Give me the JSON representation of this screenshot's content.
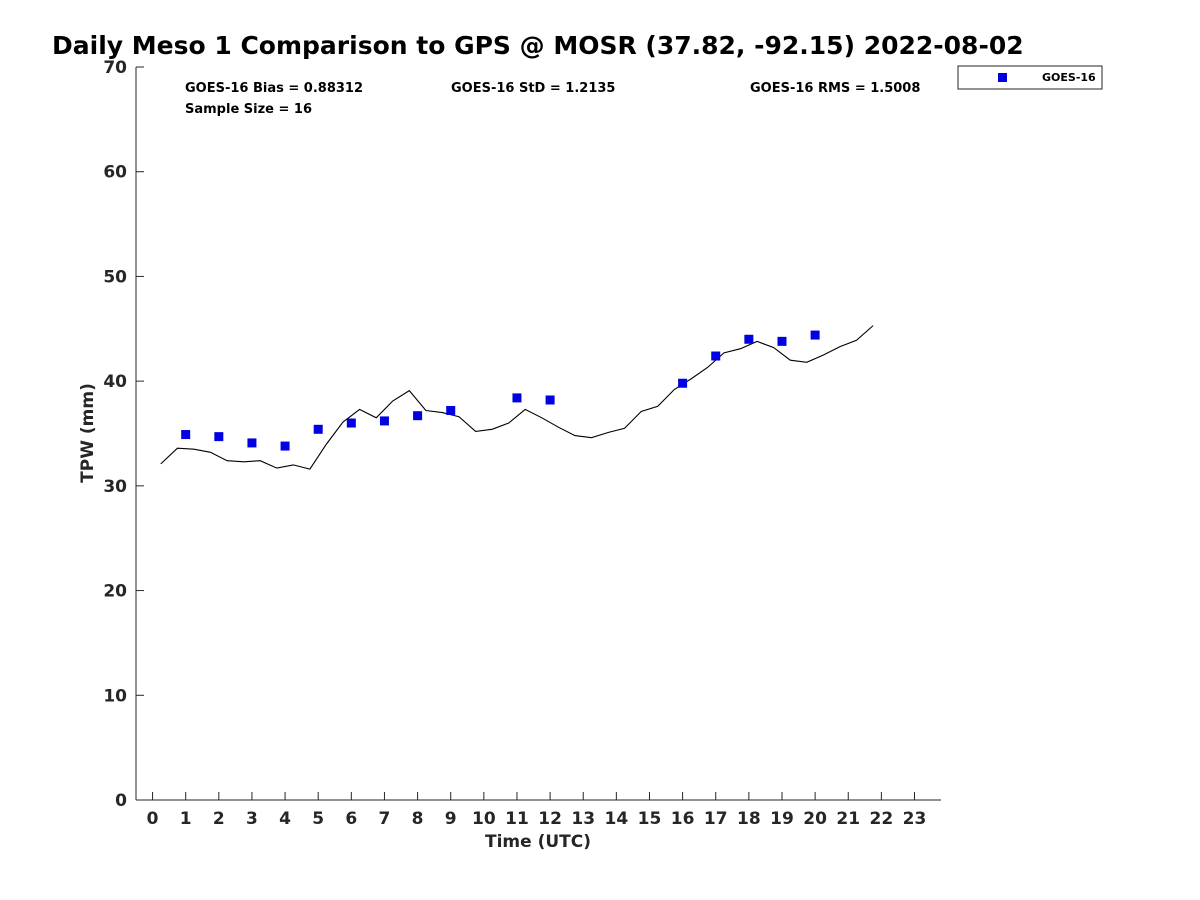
{
  "chart_data": {
    "type": "scatter",
    "title": "Daily Meso 1 Comparison to GPS @ MOSR (37.82, -92.15) 2022-08-02",
    "xlabel": "Time (UTC)",
    "ylabel": "TPW (mm)",
    "xlim": [
      -0.5,
      23.8
    ],
    "ylim": [
      0,
      70
    ],
    "x_ticks": [
      0,
      1,
      2,
      3,
      4,
      5,
      6,
      7,
      8,
      9,
      10,
      11,
      12,
      13,
      14,
      15,
      16,
      17,
      18,
      19,
      20,
      21,
      22,
      23
    ],
    "y_ticks": [
      0,
      10,
      20,
      30,
      40,
      50,
      60,
      70
    ],
    "grid": false,
    "legend_position": "top-right outside",
    "stats": {
      "bias": "GOES-16 Bias = 0.88312",
      "std": "GOES-16 StD = 1.2135",
      "rms": "GOES-16 RMS = 1.5008",
      "sample_size": "Sample Size = 16"
    },
    "series": [
      {
        "name": "GOES-16",
        "kind": "scatter",
        "marker": "square",
        "color": "#0000e0",
        "points": [
          {
            "x": 1,
            "y": 34.9
          },
          {
            "x": 2,
            "y": 34.7
          },
          {
            "x": 3,
            "y": 34.1
          },
          {
            "x": 4,
            "y": 33.8
          },
          {
            "x": 5,
            "y": 35.4
          },
          {
            "x": 6,
            "y": 36.0
          },
          {
            "x": 7,
            "y": 36.2
          },
          {
            "x": 8,
            "y": 36.7
          },
          {
            "x": 9,
            "y": 37.2
          },
          {
            "x": 11,
            "y": 38.4
          },
          {
            "x": 12,
            "y": 38.2
          },
          {
            "x": 16,
            "y": 39.8
          },
          {
            "x": 17,
            "y": 42.4
          },
          {
            "x": 18,
            "y": 44.0
          },
          {
            "x": 19,
            "y": 43.8
          },
          {
            "x": 20,
            "y": 44.4
          }
        ]
      },
      {
        "kind": "line",
        "color": "#000000",
        "points": [
          {
            "x": 0.25,
            "y": 32.1
          },
          {
            "x": 0.75,
            "y": 33.6
          },
          {
            "x": 1.25,
            "y": 33.5
          },
          {
            "x": 1.75,
            "y": 33.2
          },
          {
            "x": 2.25,
            "y": 32.4
          },
          {
            "x": 2.75,
            "y": 32.3
          },
          {
            "x": 3.25,
            "y": 32.4
          },
          {
            "x": 3.75,
            "y": 31.7
          },
          {
            "x": 4.25,
            "y": 32.0
          },
          {
            "x": 4.75,
            "y": 31.6
          },
          {
            "x": 5.25,
            "y": 34.0
          },
          {
            "x": 5.75,
            "y": 36.1
          },
          {
            "x": 6.25,
            "y": 37.3
          },
          {
            "x": 6.75,
            "y": 36.5
          },
          {
            "x": 7.25,
            "y": 38.1
          },
          {
            "x": 7.75,
            "y": 39.1
          },
          {
            "x": 8.25,
            "y": 37.2
          },
          {
            "x": 8.75,
            "y": 37.0
          },
          {
            "x": 9.25,
            "y": 36.6
          },
          {
            "x": 9.75,
            "y": 35.2
          },
          {
            "x": 10.25,
            "y": 35.4
          },
          {
            "x": 10.75,
            "y": 36.0
          },
          {
            "x": 11.25,
            "y": 37.3
          },
          {
            "x": 11.75,
            "y": 36.5
          },
          {
            "x": 12.25,
            "y": 35.6
          },
          {
            "x": 12.75,
            "y": 34.8
          },
          {
            "x": 13.25,
            "y": 34.6
          },
          {
            "x": 13.75,
            "y": 35.1
          },
          {
            "x": 14.25,
            "y": 35.5
          },
          {
            "x": 14.75,
            "y": 37.1
          },
          {
            "x": 15.25,
            "y": 37.6
          },
          {
            "x": 15.75,
            "y": 39.2
          },
          {
            "x": 16.25,
            "y": 40.2
          },
          {
            "x": 16.75,
            "y": 41.3
          },
          {
            "x": 17.25,
            "y": 42.7
          },
          {
            "x": 17.75,
            "y": 43.1
          },
          {
            "x": 18.25,
            "y": 43.8
          },
          {
            "x": 18.75,
            "y": 43.2
          },
          {
            "x": 19.25,
            "y": 42.0
          },
          {
            "x": 19.75,
            "y": 41.8
          },
          {
            "x": 20.25,
            "y": 42.5
          },
          {
            "x": 20.75,
            "y": 43.3
          },
          {
            "x": 21.25,
            "y": 43.9
          },
          {
            "x": 21.75,
            "y": 45.3
          }
        ]
      }
    ]
  }
}
